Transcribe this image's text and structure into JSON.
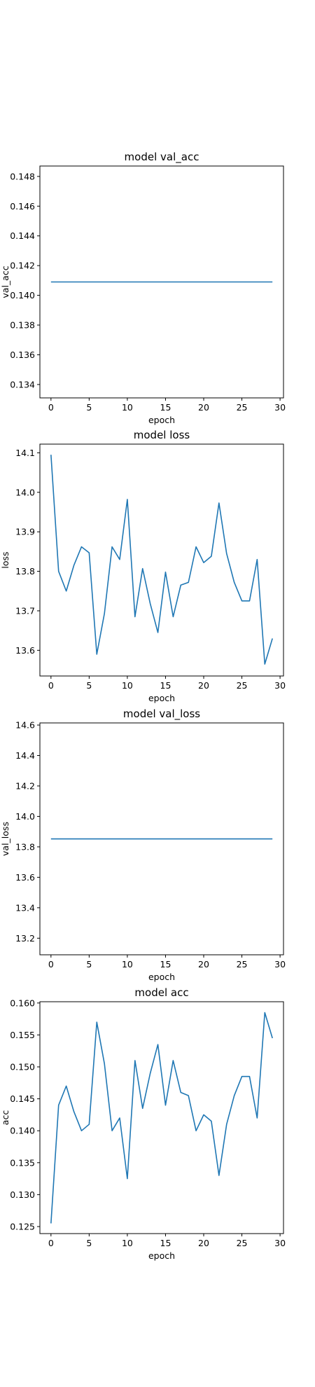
{
  "chart_data": [
    {
      "type": "line",
      "title": "model val_acc",
      "xlabel": "epoch",
      "ylabel": "val_acc",
      "xlim": [
        -1.45,
        30.45
      ],
      "ylim": [
        0.1331,
        0.1487
      ],
      "xticks": [
        0,
        5,
        10,
        15,
        20,
        25,
        30
      ],
      "yticks": [
        0.134,
        0.136,
        0.138,
        0.14,
        0.142,
        0.144,
        0.146,
        0.148
      ],
      "ytick_decimals": 3,
      "grid": false,
      "series": [
        {
          "color": "#1f77b4",
          "x": [
            0,
            1,
            2,
            3,
            4,
            5,
            6,
            7,
            8,
            9,
            10,
            11,
            12,
            13,
            14,
            15,
            16,
            17,
            18,
            19,
            20,
            21,
            22,
            23,
            24,
            25,
            26,
            27,
            28,
            29
          ],
          "y": [
            0.1409,
            0.1409,
            0.1409,
            0.1409,
            0.1409,
            0.1409,
            0.1409,
            0.1409,
            0.1409,
            0.1409,
            0.1409,
            0.1409,
            0.1409,
            0.1409,
            0.1409,
            0.1409,
            0.1409,
            0.1409,
            0.1409,
            0.1409,
            0.1409,
            0.1409,
            0.1409,
            0.1409,
            0.1409,
            0.1409,
            0.1409,
            0.1409,
            0.1409,
            0.1409
          ]
        }
      ]
    },
    {
      "type": "line",
      "title": "model loss",
      "xlabel": "epoch",
      "ylabel": "loss",
      "xlim": [
        -1.45,
        30.45
      ],
      "ylim": [
        13.535,
        14.122
      ],
      "xticks": [
        0,
        5,
        10,
        15,
        20,
        25,
        30
      ],
      "yticks": [
        13.6,
        13.7,
        13.8,
        13.9,
        14.0,
        14.1
      ],
      "ytick_decimals": 1,
      "grid": false,
      "series": [
        {
          "color": "#1f77b4",
          "x": [
            0,
            1,
            2,
            3,
            4,
            5,
            6,
            7,
            8,
            9,
            10,
            11,
            12,
            13,
            14,
            15,
            16,
            17,
            18,
            19,
            20,
            21,
            22,
            23,
            24,
            25,
            26,
            27,
            28,
            29
          ],
          "y": [
            14.095,
            13.8,
            13.75,
            13.815,
            13.862,
            13.847,
            13.59,
            13.693,
            13.862,
            13.83,
            13.982,
            13.685,
            13.807,
            13.718,
            13.645,
            13.798,
            13.685,
            13.765,
            13.772,
            13.862,
            13.822,
            13.838,
            13.973,
            13.845,
            13.772,
            13.725,
            13.725,
            13.83,
            13.565,
            13.63
          ]
        }
      ]
    },
    {
      "type": "line",
      "title": "model val_loss",
      "xlabel": "epoch",
      "ylabel": "val_loss",
      "xlim": [
        -1.45,
        30.45
      ],
      "ylim": [
        13.091,
        14.614
      ],
      "xticks": [
        0,
        5,
        10,
        15,
        20,
        25,
        30
      ],
      "yticks": [
        13.2,
        13.4,
        13.6,
        13.8,
        14.0,
        14.2,
        14.4,
        14.6
      ],
      "ytick_decimals": 1,
      "grid": false,
      "series": [
        {
          "color": "#1f77b4",
          "x": [
            0,
            1,
            2,
            3,
            4,
            5,
            6,
            7,
            8,
            9,
            10,
            11,
            12,
            13,
            14,
            15,
            16,
            17,
            18,
            19,
            20,
            21,
            22,
            23,
            24,
            25,
            26,
            27,
            28,
            29
          ],
          "y": [
            13.852,
            13.852,
            13.852,
            13.852,
            13.852,
            13.852,
            13.852,
            13.852,
            13.852,
            13.852,
            13.852,
            13.852,
            13.852,
            13.852,
            13.852,
            13.852,
            13.852,
            13.852,
            13.852,
            13.852,
            13.852,
            13.852,
            13.852,
            13.852,
            13.852,
            13.852,
            13.852,
            13.852,
            13.852,
            13.852
          ]
        }
      ]
    },
    {
      "type": "line",
      "title": "model acc",
      "xlabel": "epoch",
      "ylabel": "acc",
      "xlim": [
        -1.45,
        30.45
      ],
      "ylim": [
        0.1239,
        0.1602
      ],
      "xticks": [
        0,
        5,
        10,
        15,
        20,
        25,
        30
      ],
      "yticks": [
        0.125,
        0.13,
        0.135,
        0.14,
        0.145,
        0.15,
        0.155,
        0.16
      ],
      "ytick_decimals": 3,
      "grid": false,
      "series": [
        {
          "color": "#1f77b4",
          "x": [
            0,
            1,
            2,
            3,
            4,
            5,
            6,
            7,
            8,
            9,
            10,
            11,
            12,
            13,
            14,
            15,
            16,
            17,
            18,
            19,
            20,
            21,
            22,
            23,
            24,
            25,
            26,
            27,
            28,
            29
          ],
          "y": [
            0.1255,
            0.144,
            0.147,
            0.143,
            0.14,
            0.141,
            0.157,
            0.1505,
            0.14,
            0.142,
            0.1325,
            0.151,
            0.1435,
            0.149,
            0.1535,
            0.144,
            0.151,
            0.146,
            0.1455,
            0.14,
            0.1425,
            0.1415,
            0.133,
            0.141,
            0.1455,
            0.1485,
            0.1485,
            0.142,
            0.1585,
            0.1545
          ]
        }
      ]
    }
  ]
}
